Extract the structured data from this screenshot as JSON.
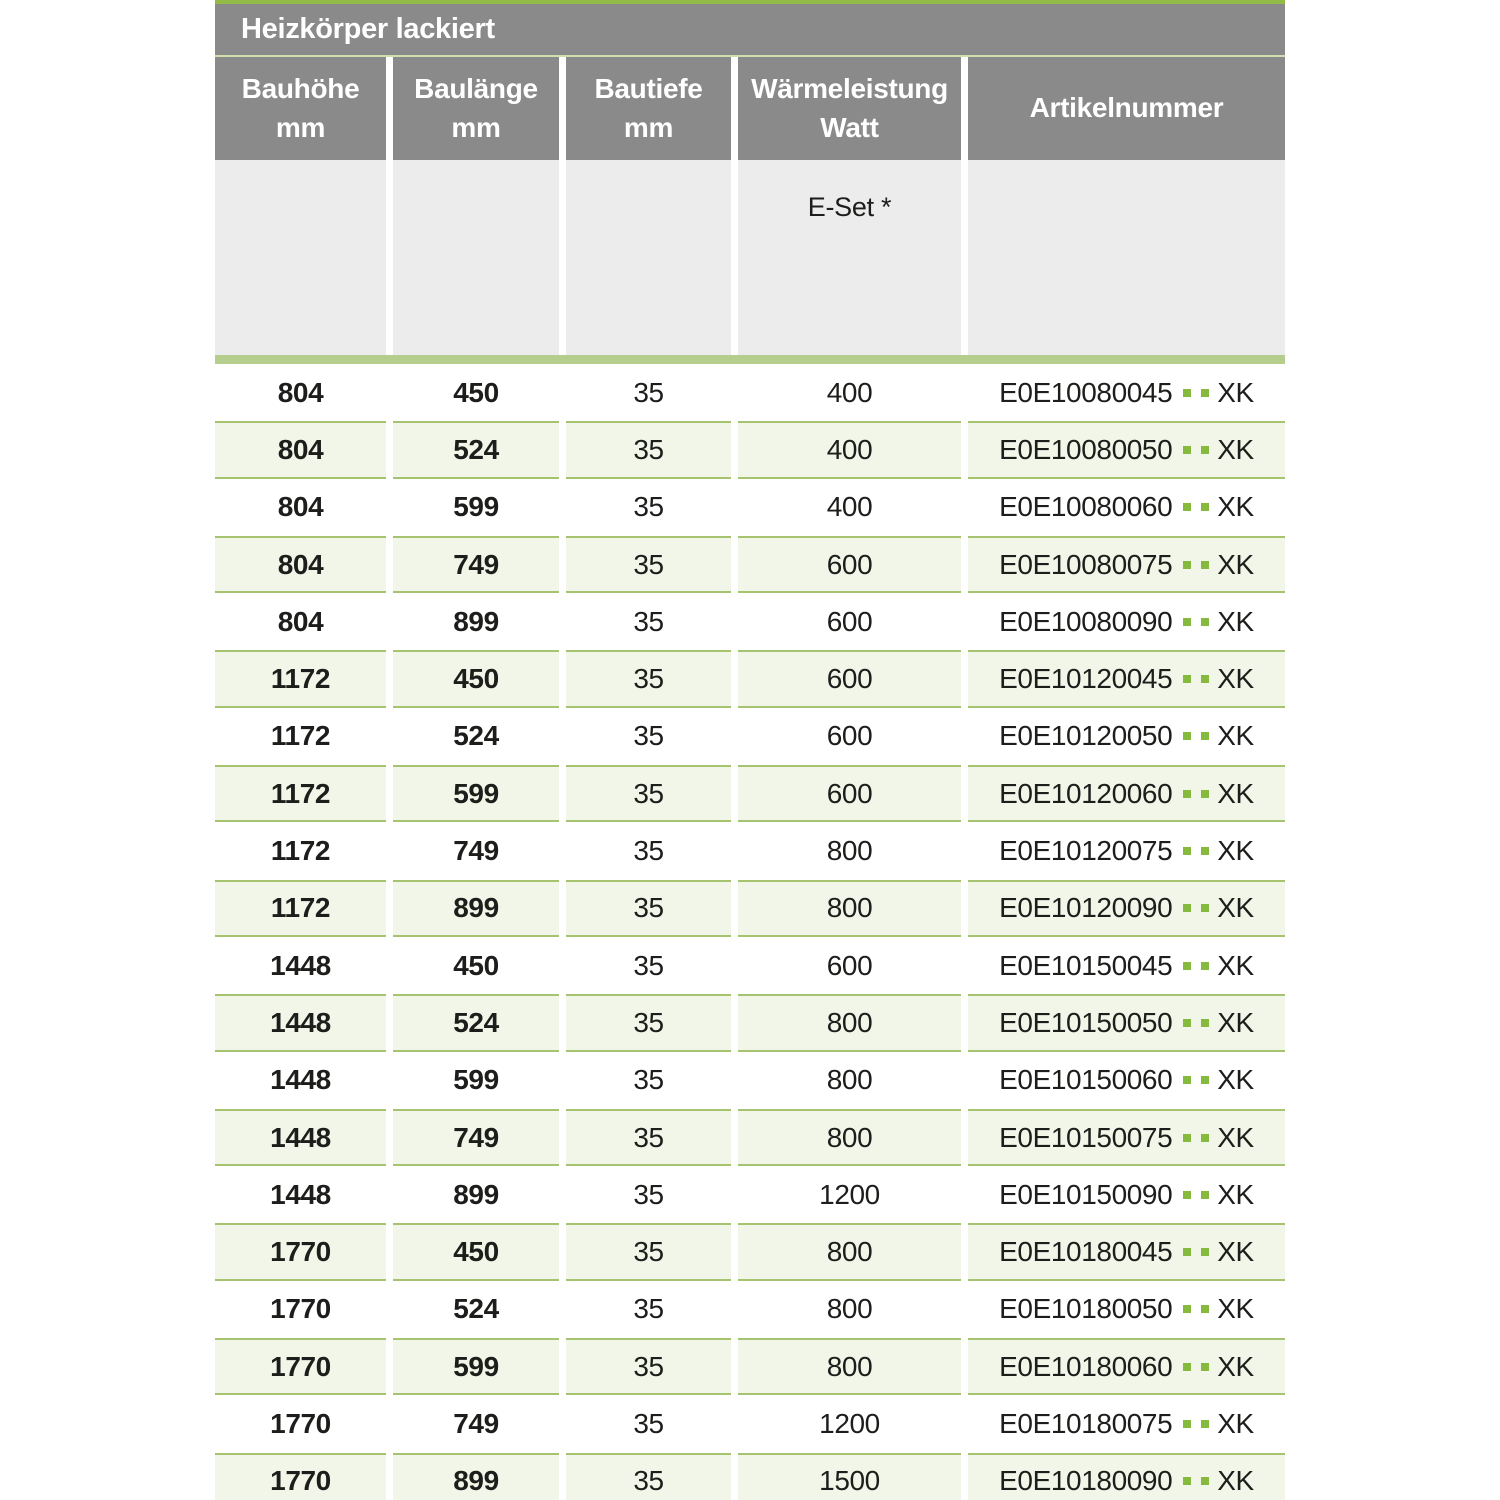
{
  "title": "Heizkörper lackiert",
  "columns": [
    {
      "line1": "Bauhöhe",
      "line2": "mm"
    },
    {
      "line1": "Baulänge",
      "line2": "mm"
    },
    {
      "line1": "Bautiefe",
      "line2": "mm"
    },
    {
      "line1": "Wärmeleistung",
      "line2": "Watt"
    },
    {
      "line1": "Artikelnummer",
      "line2": ""
    }
  ],
  "subheader": {
    "eset": "E-Set *"
  },
  "rows": [
    {
      "bauhoehe": "804",
      "baulaenge": "450",
      "bautiefe": "35",
      "watt": "400",
      "artikel": "E0E10080045",
      "suffix": "XK"
    },
    {
      "bauhoehe": "804",
      "baulaenge": "524",
      "bautiefe": "35",
      "watt": "400",
      "artikel": "E0E10080050",
      "suffix": "XK"
    },
    {
      "bauhoehe": "804",
      "baulaenge": "599",
      "bautiefe": "35",
      "watt": "400",
      "artikel": "E0E10080060",
      "suffix": "XK"
    },
    {
      "bauhoehe": "804",
      "baulaenge": "749",
      "bautiefe": "35",
      "watt": "600",
      "artikel": "E0E10080075",
      "suffix": "XK"
    },
    {
      "bauhoehe": "804",
      "baulaenge": "899",
      "bautiefe": "35",
      "watt": "600",
      "artikel": "E0E10080090",
      "suffix": "XK"
    },
    {
      "bauhoehe": "1172",
      "baulaenge": "450",
      "bautiefe": "35",
      "watt": "600",
      "artikel": "E0E10120045",
      "suffix": "XK"
    },
    {
      "bauhoehe": "1172",
      "baulaenge": "524",
      "bautiefe": "35",
      "watt": "600",
      "artikel": "E0E10120050",
      "suffix": "XK"
    },
    {
      "bauhoehe": "1172",
      "baulaenge": "599",
      "bautiefe": "35",
      "watt": "600",
      "artikel": "E0E10120060",
      "suffix": "XK"
    },
    {
      "bauhoehe": "1172",
      "baulaenge": "749",
      "bautiefe": "35",
      "watt": "800",
      "artikel": "E0E10120075",
      "suffix": "XK"
    },
    {
      "bauhoehe": "1172",
      "baulaenge": "899",
      "bautiefe": "35",
      "watt": "800",
      "artikel": "E0E10120090",
      "suffix": "XK"
    },
    {
      "bauhoehe": "1448",
      "baulaenge": "450",
      "bautiefe": "35",
      "watt": "600",
      "artikel": "E0E10150045",
      "suffix": "XK"
    },
    {
      "bauhoehe": "1448",
      "baulaenge": "524",
      "bautiefe": "35",
      "watt": "800",
      "artikel": "E0E10150050",
      "suffix": "XK"
    },
    {
      "bauhoehe": "1448",
      "baulaenge": "599",
      "bautiefe": "35",
      "watt": "800",
      "artikel": "E0E10150060",
      "suffix": "XK"
    },
    {
      "bauhoehe": "1448",
      "baulaenge": "749",
      "bautiefe": "35",
      "watt": "800",
      "artikel": "E0E10150075",
      "suffix": "XK"
    },
    {
      "bauhoehe": "1448",
      "baulaenge": "899",
      "bautiefe": "35",
      "watt": "1200",
      "artikel": "E0E10150090",
      "suffix": "XK"
    },
    {
      "bauhoehe": "1770",
      "baulaenge": "450",
      "bautiefe": "35",
      "watt": "800",
      "artikel": "E0E10180045",
      "suffix": "XK"
    },
    {
      "bauhoehe": "1770",
      "baulaenge": "524",
      "bautiefe": "35",
      "watt": "800",
      "artikel": "E0E10180050",
      "suffix": "XK"
    },
    {
      "bauhoehe": "1770",
      "baulaenge": "599",
      "bautiefe": "35",
      "watt": "800",
      "artikel": "E0E10180060",
      "suffix": "XK"
    },
    {
      "bauhoehe": "1770",
      "baulaenge": "749",
      "bautiefe": "35",
      "watt": "1200",
      "artikel": "E0E10180075",
      "suffix": "XK"
    },
    {
      "bauhoehe": "1770",
      "baulaenge": "899",
      "bautiefe": "35",
      "watt": "1500",
      "artikel": "E0E10180090",
      "suffix": "XK"
    }
  ],
  "colors": {
    "header_gray": "#8a8a8a",
    "subheader_gray": "#ececec",
    "top_line_green": "#93b946",
    "separator_green": "#cfe0ae",
    "bar_green": "#b5cd8d",
    "row_background_green": "#f1f6e8",
    "row_border_green": "#a6c470",
    "dot_green": "#85ba3e",
    "text_dark": "#1d1d1b"
  }
}
